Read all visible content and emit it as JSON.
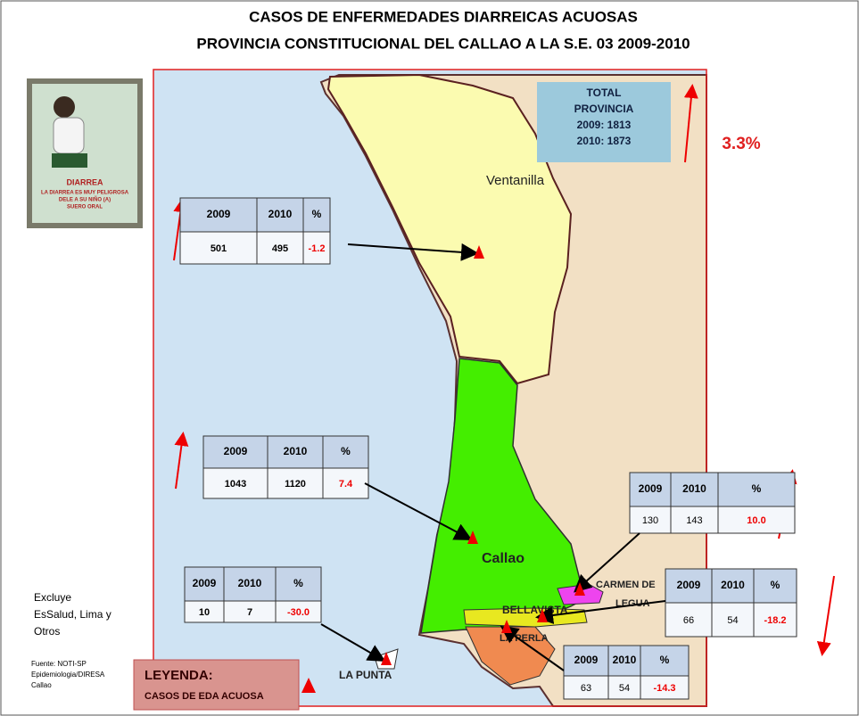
{
  "title": [
    "CASOS DE ENFERMEDADES DIARREICAS ACUOSAS",
    "PROVINCIA CONSTITUCIONAL DEL CALLAO A LA S.E. 03 2009-2010"
  ],
  "poster": {
    "heading": "DIARREA",
    "lines": [
      "LA DIARREA ES MUY PELIGROSA",
      "DELE A SU NIÑO (A)",
      "SUERO ORAL"
    ]
  },
  "total": {
    "lines": [
      "TOTAL",
      "PROVINCIA",
      "2009: 1813",
      "2010: 1873"
    ],
    "change": "3.3%"
  },
  "districts": [
    {
      "name": [
        "Ventanilla"
      ],
      "table": {
        "header": [
          "2009",
          "2010",
          "%"
        ],
        "row": [
          "501",
          "495",
          "-1.2"
        ]
      }
    },
    {
      "name": [
        "Callao"
      ],
      "table": {
        "header": [
          "2009",
          "2010",
          "%"
        ],
        "row": [
          "1043",
          "1120",
          "7.4"
        ]
      }
    },
    {
      "name": [
        "CARMEN DE",
        "LEGUA"
      ],
      "table": {
        "header": [
          "2009",
          "2010",
          "%"
        ],
        "row": [
          "130",
          "143",
          "10.0"
        ]
      }
    },
    {
      "name": [
        "BELLAVISTA"
      ],
      "table": {
        "header": [
          "2009",
          "2010",
          "%"
        ],
        "row": [
          "66",
          "54",
          "-18.2"
        ]
      }
    },
    {
      "name": [
        "LA PERLA"
      ],
      "table": {
        "header": [
          "2009",
          "2010",
          "%"
        ],
        "row": [
          "63",
          "54",
          "-14.3"
        ]
      }
    },
    {
      "name": [
        "LA PUNTA"
      ],
      "table": {
        "header": [
          "2009",
          "2010",
          "%"
        ],
        "row": [
          "10",
          "7",
          "-30.0"
        ]
      }
    }
  ],
  "note": [
    "Excluye",
    "EsSalud, Lima y",
    "Otros"
  ],
  "source": [
    "Fuente: NOTI-SP",
    "Epidemiologia/DIRESA",
    "Callao"
  ],
  "legend": {
    "title": "LEYENDA:",
    "label": "CASOS DE EDA ACUOSA"
  }
}
